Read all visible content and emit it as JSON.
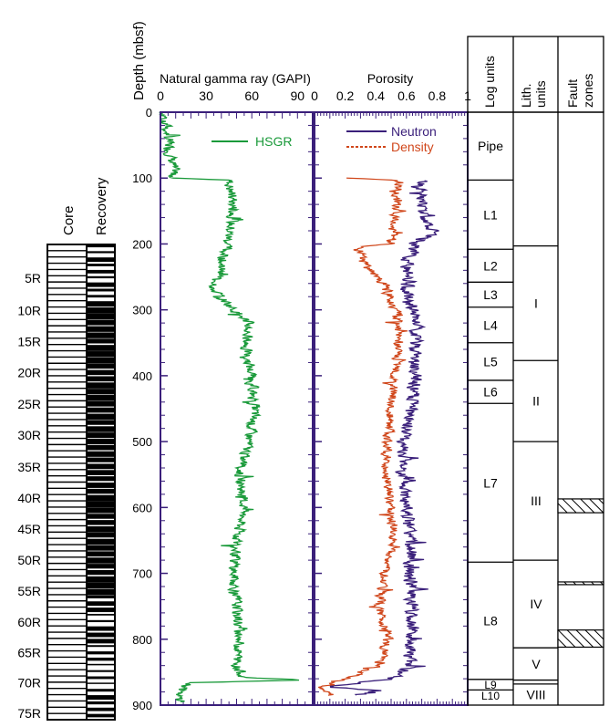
{
  "chart_data": {
    "type": "line",
    "depth_axis": {
      "label": "Depth (mbsf)",
      "range": [
        0,
        900
      ],
      "ticks": [
        0,
        100,
        200,
        300,
        400,
        500,
        600,
        700,
        800,
        900
      ]
    },
    "core_recovery": {
      "headers": [
        "Core",
        "Recovery"
      ],
      "core_labels": [
        {
          "label": "5R",
          "depth": 257
        },
        {
          "label": "10R",
          "depth": 307
        },
        {
          "label": "15R",
          "depth": 355
        },
        {
          "label": "20R",
          "depth": 403
        },
        {
          "label": "25R",
          "depth": 452
        },
        {
          "label": "30R",
          "depth": 500
        },
        {
          "label": "35R",
          "depth": 549
        },
        {
          "label": "40R",
          "depth": 597
        },
        {
          "label": "45R",
          "depth": 645
        },
        {
          "label": "50R",
          "depth": 693
        },
        {
          "label": "55R",
          "depth": 741
        },
        {
          "label": "60R",
          "depth": 789
        },
        {
          "label": "65R",
          "depth": 836
        },
        {
          "label": "70R",
          "depth": 883
        },
        {
          "label": "75R",
          "depth": 930
        }
      ],
      "core_top_depth": 205,
      "core_bottom_depth": 940,
      "core_count": 76
    },
    "gamma_panel": {
      "title": "Natural gamma ray (GAPI)",
      "xlim": [
        0,
        100
      ],
      "ticks": [
        0,
        30,
        60,
        90
      ],
      "series": [
        {
          "name": "HSGR",
          "color": "#1a9a3a",
          "profile": [
            [
              0,
              2
            ],
            [
              20,
              4
            ],
            [
              40,
              5
            ],
            [
              60,
              6
            ],
            [
              80,
              8
            ],
            [
              98,
              9
            ],
            [
              100,
              12
            ],
            [
              103,
              45
            ],
            [
              150,
              48
            ],
            [
              200,
              44
            ],
            [
              250,
              38
            ],
            [
              270,
              35
            ],
            [
              290,
              44
            ],
            [
              320,
              58
            ],
            [
              360,
              56
            ],
            [
              400,
              60
            ],
            [
              450,
              62
            ],
            [
              500,
              58
            ],
            [
              550,
              52
            ],
            [
              600,
              55
            ],
            [
              650,
              50
            ],
            [
              700,
              48
            ],
            [
              750,
              50
            ],
            [
              800,
              52
            ],
            [
              840,
              50
            ],
            [
              858,
              55
            ],
            [
              862,
              92
            ],
            [
              866,
              20
            ],
            [
              880,
              12
            ],
            [
              895,
              13
            ]
          ]
        }
      ]
    },
    "porosity_panel": {
      "title": "Porosity",
      "xlim": [
        0,
        1
      ],
      "ticks": [
        "0",
        "0.2",
        "0.4",
        "0.6",
        "0.8",
        "1"
      ],
      "series": [
        {
          "name": "Neutron",
          "color": "#3a1f7a",
          "profile": [
            [
              104,
              0.7
            ],
            [
              150,
              0.7
            ],
            [
              180,
              0.78
            ],
            [
              200,
              0.66
            ],
            [
              230,
              0.6
            ],
            [
              260,
              0.6
            ],
            [
              300,
              0.64
            ],
            [
              350,
              0.66
            ],
            [
              400,
              0.66
            ],
            [
              450,
              0.63
            ],
            [
              500,
              0.58
            ],
            [
              550,
              0.58
            ],
            [
              600,
              0.6
            ],
            [
              650,
              0.62
            ],
            [
              700,
              0.63
            ],
            [
              750,
              0.64
            ],
            [
              800,
              0.63
            ],
            [
              840,
              0.62
            ],
            [
              860,
              0.5
            ],
            [
              872,
              0.1
            ],
            [
              878,
              0.4
            ],
            [
              885,
              0.3
            ]
          ]
        },
        {
          "name": "Density",
          "color": "#d0461a",
          "profile": [
            [
              100,
              0.2
            ],
            [
              104,
              0.56
            ],
            [
              150,
              0.52
            ],
            [
              200,
              0.5
            ],
            [
              205,
              0.3
            ],
            [
              230,
              0.32
            ],
            [
              260,
              0.45
            ],
            [
              300,
              0.53
            ],
            [
              350,
              0.55
            ],
            [
              400,
              0.52
            ],
            [
              450,
              0.5
            ],
            [
              500,
              0.47
            ],
            [
              550,
              0.47
            ],
            [
              600,
              0.5
            ],
            [
              650,
              0.52
            ],
            [
              700,
              0.45
            ],
            [
              750,
              0.42
            ],
            [
              800,
              0.48
            ],
            [
              840,
              0.42
            ],
            [
              860,
              0.2
            ],
            [
              872,
              0.05
            ],
            [
              885,
              0.1
            ]
          ]
        }
      ]
    },
    "log_units": {
      "header": "Log units",
      "units": [
        {
          "label": "Pipe",
          "top": 0,
          "bottom": 103
        },
        {
          "label": "L1",
          "top": 103,
          "bottom": 208
        },
        {
          "label": "L2",
          "top": 208,
          "bottom": 258
        },
        {
          "label": "L3",
          "top": 258,
          "bottom": 296
        },
        {
          "label": "L4",
          "top": 296,
          "bottom": 350
        },
        {
          "label": "L5",
          "top": 350,
          "bottom": 407
        },
        {
          "label": "L6",
          "top": 407,
          "bottom": 442
        },
        {
          "label": "L7",
          "top": 442,
          "bottom": 683
        },
        {
          "label": "L8",
          "top": 683,
          "bottom": 861
        },
        {
          "label": "L9",
          "top": 861,
          "bottom": 877
        },
        {
          "label": "L10",
          "top": 877,
          "bottom": 895
        }
      ]
    },
    "lith_units": {
      "header": "Lith. units",
      "units": [
        {
          "label": "",
          "top": 0,
          "bottom": 203
        },
        {
          "label": "I",
          "top": 203,
          "bottom": 377
        },
        {
          "label": "II",
          "top": 377,
          "bottom": 500
        },
        {
          "label": "III",
          "top": 500,
          "bottom": 680
        },
        {
          "label": "IV",
          "top": 680,
          "bottom": 813
        },
        {
          "label": "V",
          "top": 813,
          "bottom": 862
        },
        {
          "label": "",
          "top": 862,
          "bottom": 868
        },
        {
          "label": "VIII",
          "top": 868,
          "bottom": 900
        }
      ]
    },
    "fault_zones": {
      "header": "Fault zones",
      "zones": [
        {
          "top": 587,
          "bottom": 608
        },
        {
          "top": 713,
          "bottom": 717
        },
        {
          "top": 786,
          "bottom": 812
        }
      ]
    },
    "legend_placement": "top-right"
  }
}
